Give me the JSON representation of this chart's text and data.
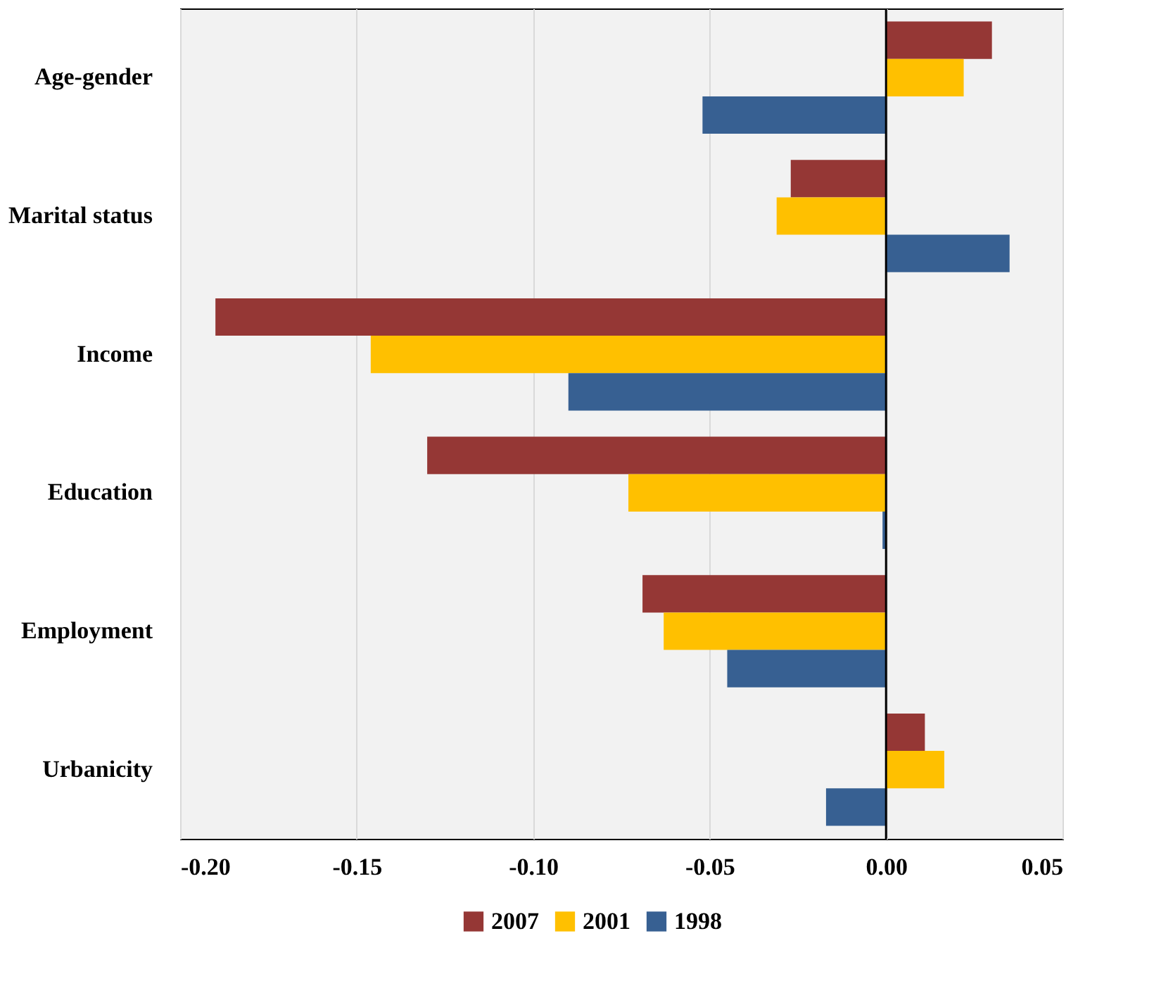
{
  "chart_data": {
    "type": "bar",
    "orientation": "horizontal",
    "categories": [
      "Age-gender",
      "Marital status",
      "Income",
      "Education",
      "Employment",
      "Urbanicity"
    ],
    "series": [
      {
        "name": "2007",
        "color": "#953735",
        "values": [
          0.03,
          -0.027,
          -0.19,
          -0.13,
          -0.069,
          0.011
        ]
      },
      {
        "name": "2001",
        "color": "#ffc000",
        "values": [
          0.022,
          -0.031,
          -0.146,
          -0.073,
          -0.063,
          0.0165
        ]
      },
      {
        "name": "1998",
        "color": "#376092",
        "values": [
          -0.052,
          0.035,
          -0.09,
          -0.001,
          -0.045,
          -0.017
        ]
      }
    ],
    "xlim": [
      -0.2,
      0.05
    ],
    "xticks": [
      {
        "value": -0.2,
        "label": "-0.20"
      },
      {
        "value": -0.15,
        "label": "-0.15"
      },
      {
        "value": -0.1,
        "label": "-0.10"
      },
      {
        "value": -0.05,
        "label": "-0.05"
      },
      {
        "value": 0,
        "label": "0.00"
      },
      {
        "value": 0.05,
        "label": "0.05"
      }
    ],
    "ref_lines": [
      {
        "axis": "x",
        "value": 0,
        "color": "#000000"
      }
    ],
    "grid": "x",
    "legend": "bottom"
  }
}
